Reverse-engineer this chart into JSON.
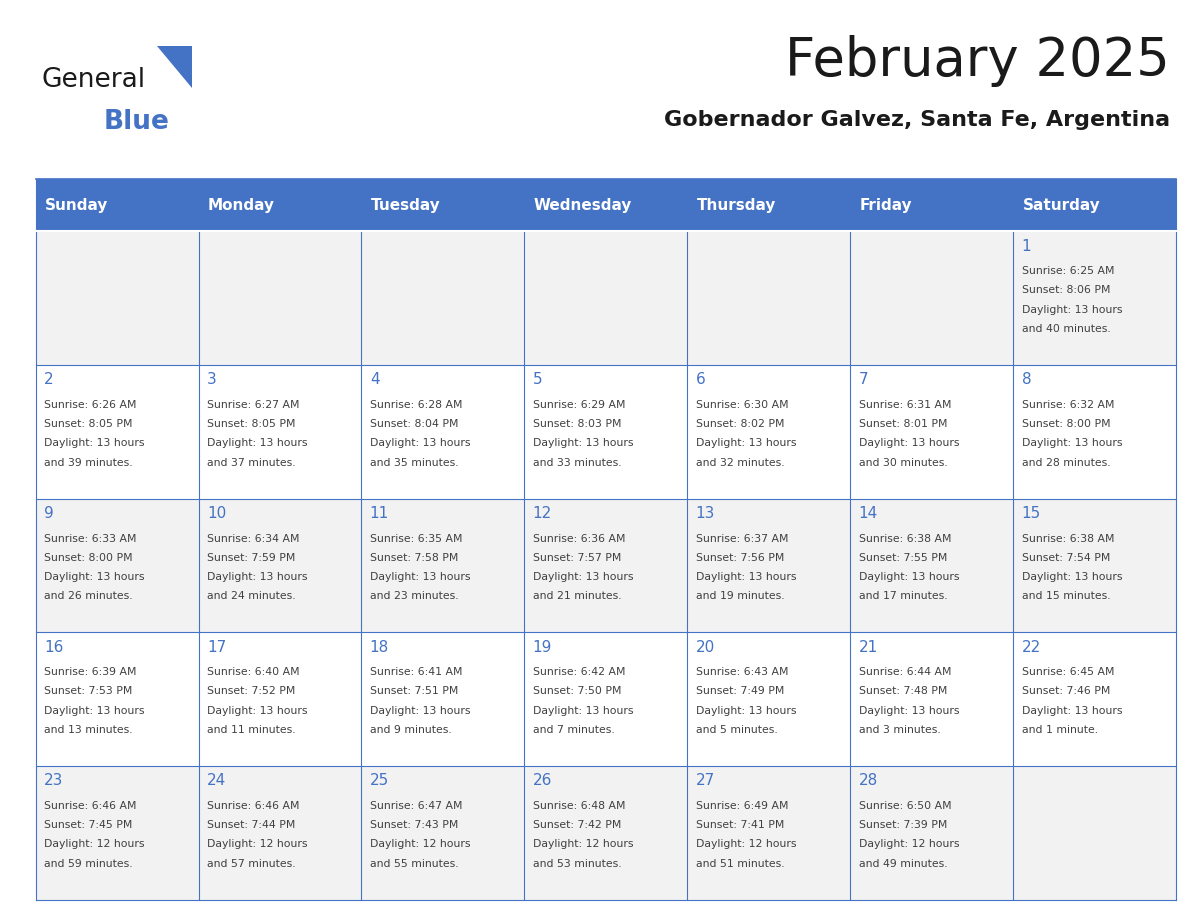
{
  "title": "February 2025",
  "subtitle": "Gobernador Galvez, Santa Fe, Argentina",
  "days_of_week": [
    "Sunday",
    "Monday",
    "Tuesday",
    "Wednesday",
    "Thursday",
    "Friday",
    "Saturday"
  ],
  "header_bg": "#4472C4",
  "header_text": "#FFFFFF",
  "row_bg_odd": "#F2F2F2",
  "row_bg_even": "#FFFFFF",
  "border_color": "#4472C4",
  "day_number_color": "#4472C4",
  "text_color": "#404040",
  "calendar_data": [
    {
      "day": 1,
      "col": 6,
      "row": 0,
      "sunrise": "6:25 AM",
      "sunset": "8:06 PM",
      "daylight": "13 hours and 40 minutes."
    },
    {
      "day": 2,
      "col": 0,
      "row": 1,
      "sunrise": "6:26 AM",
      "sunset": "8:05 PM",
      "daylight": "13 hours and 39 minutes."
    },
    {
      "day": 3,
      "col": 1,
      "row": 1,
      "sunrise": "6:27 AM",
      "sunset": "8:05 PM",
      "daylight": "13 hours and 37 minutes."
    },
    {
      "day": 4,
      "col": 2,
      "row": 1,
      "sunrise": "6:28 AM",
      "sunset": "8:04 PM",
      "daylight": "13 hours and 35 minutes."
    },
    {
      "day": 5,
      "col": 3,
      "row": 1,
      "sunrise": "6:29 AM",
      "sunset": "8:03 PM",
      "daylight": "13 hours and 33 minutes."
    },
    {
      "day": 6,
      "col": 4,
      "row": 1,
      "sunrise": "6:30 AM",
      "sunset": "8:02 PM",
      "daylight": "13 hours and 32 minutes."
    },
    {
      "day": 7,
      "col": 5,
      "row": 1,
      "sunrise": "6:31 AM",
      "sunset": "8:01 PM",
      "daylight": "13 hours and 30 minutes."
    },
    {
      "day": 8,
      "col": 6,
      "row": 1,
      "sunrise": "6:32 AM",
      "sunset": "8:00 PM",
      "daylight": "13 hours and 28 minutes."
    },
    {
      "day": 9,
      "col": 0,
      "row": 2,
      "sunrise": "6:33 AM",
      "sunset": "8:00 PM",
      "daylight": "13 hours and 26 minutes."
    },
    {
      "day": 10,
      "col": 1,
      "row": 2,
      "sunrise": "6:34 AM",
      "sunset": "7:59 PM",
      "daylight": "13 hours and 24 minutes."
    },
    {
      "day": 11,
      "col": 2,
      "row": 2,
      "sunrise": "6:35 AM",
      "sunset": "7:58 PM",
      "daylight": "13 hours and 23 minutes."
    },
    {
      "day": 12,
      "col": 3,
      "row": 2,
      "sunrise": "6:36 AM",
      "sunset": "7:57 PM",
      "daylight": "13 hours and 21 minutes."
    },
    {
      "day": 13,
      "col": 4,
      "row": 2,
      "sunrise": "6:37 AM",
      "sunset": "7:56 PM",
      "daylight": "13 hours and 19 minutes."
    },
    {
      "day": 14,
      "col": 5,
      "row": 2,
      "sunrise": "6:38 AM",
      "sunset": "7:55 PM",
      "daylight": "13 hours and 17 minutes."
    },
    {
      "day": 15,
      "col": 6,
      "row": 2,
      "sunrise": "6:38 AM",
      "sunset": "7:54 PM",
      "daylight": "13 hours and 15 minutes."
    },
    {
      "day": 16,
      "col": 0,
      "row": 3,
      "sunrise": "6:39 AM",
      "sunset": "7:53 PM",
      "daylight": "13 hours and 13 minutes."
    },
    {
      "day": 17,
      "col": 1,
      "row": 3,
      "sunrise": "6:40 AM",
      "sunset": "7:52 PM",
      "daylight": "13 hours and 11 minutes."
    },
    {
      "day": 18,
      "col": 2,
      "row": 3,
      "sunrise": "6:41 AM",
      "sunset": "7:51 PM",
      "daylight": "13 hours and 9 minutes."
    },
    {
      "day": 19,
      "col": 3,
      "row": 3,
      "sunrise": "6:42 AM",
      "sunset": "7:50 PM",
      "daylight": "13 hours and 7 minutes."
    },
    {
      "day": 20,
      "col": 4,
      "row": 3,
      "sunrise": "6:43 AM",
      "sunset": "7:49 PM",
      "daylight": "13 hours and 5 minutes."
    },
    {
      "day": 21,
      "col": 5,
      "row": 3,
      "sunrise": "6:44 AM",
      "sunset": "7:48 PM",
      "daylight": "13 hours and 3 minutes."
    },
    {
      "day": 22,
      "col": 6,
      "row": 3,
      "sunrise": "6:45 AM",
      "sunset": "7:46 PM",
      "daylight": "13 hours and 1 minute."
    },
    {
      "day": 23,
      "col": 0,
      "row": 4,
      "sunrise": "6:46 AM",
      "sunset": "7:45 PM",
      "daylight": "12 hours and 59 minutes."
    },
    {
      "day": 24,
      "col": 1,
      "row": 4,
      "sunrise": "6:46 AM",
      "sunset": "7:44 PM",
      "daylight": "12 hours and 57 minutes."
    },
    {
      "day": 25,
      "col": 2,
      "row": 4,
      "sunrise": "6:47 AM",
      "sunset": "7:43 PM",
      "daylight": "12 hours and 55 minutes."
    },
    {
      "day": 26,
      "col": 3,
      "row": 4,
      "sunrise": "6:48 AM",
      "sunset": "7:42 PM",
      "daylight": "12 hours and 53 minutes."
    },
    {
      "day": 27,
      "col": 4,
      "row": 4,
      "sunrise": "6:49 AM",
      "sunset": "7:41 PM",
      "daylight": "12 hours and 51 minutes."
    },
    {
      "day": 28,
      "col": 5,
      "row": 4,
      "sunrise": "6:50 AM",
      "sunset": "7:39 PM",
      "daylight": "12 hours and 49 minutes."
    }
  ],
  "logo_text1": "General",
  "logo_text2": "Blue",
  "logo_triangle_color": "#4472C4"
}
